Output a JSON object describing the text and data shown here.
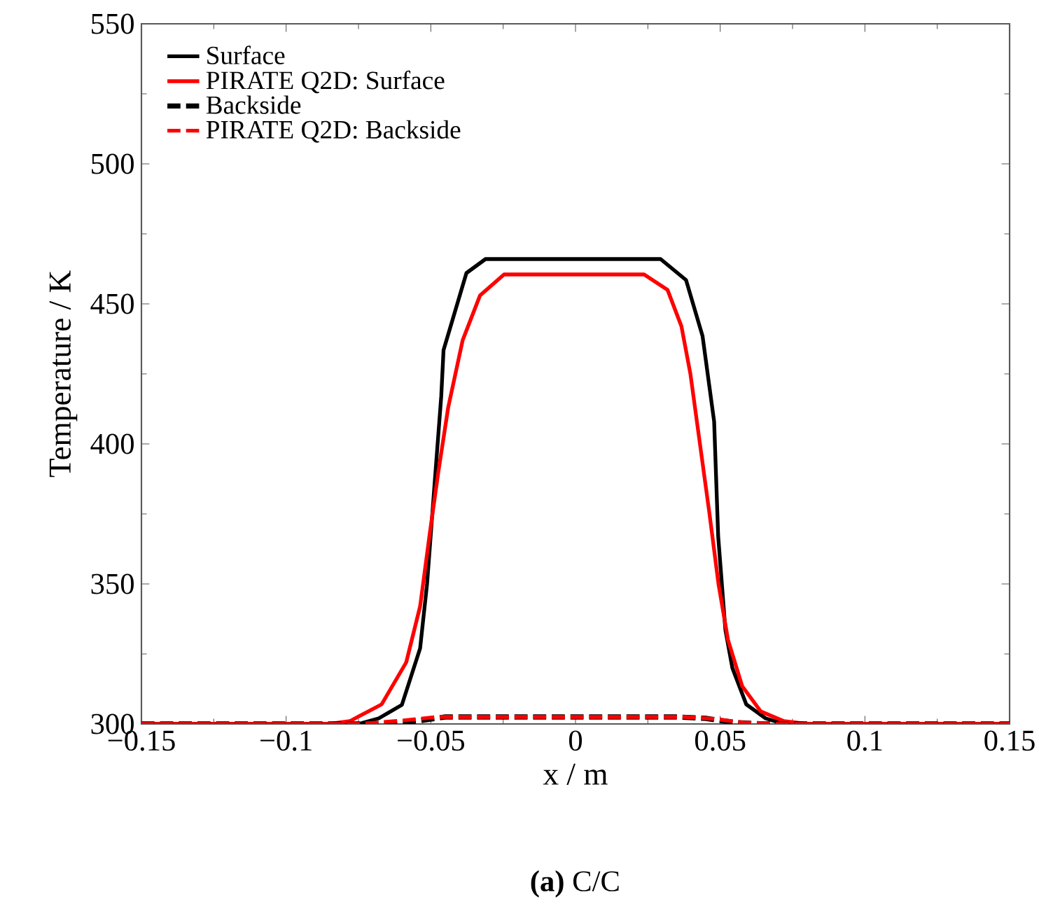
{
  "chart_data": {
    "type": "line",
    "xlabel": "x / m",
    "ylabel": "Temperature / K",
    "annotations": [
      "**(a)** C/C"
    ],
    "xlim": [
      -0.15,
      0.15
    ],
    "xticks": [
      {
        "value": -0.15,
        "label": "−0.15"
      },
      {
        "value": -0.1,
        "label": "−0.1"
      },
      {
        "value": -0.05,
        "label": "−0.05"
      },
      0,
      0.05,
      0.1,
      0.15
    ],
    "ylim": [
      300,
      550
    ],
    "yticks": [
      300,
      350,
      400,
      450,
      500,
      550
    ],
    "legend": "top left",
    "grid": false,
    "series": [
      {
        "name": "Surface",
        "color": "#000000",
        "line_style": "solid",
        "x": [
          -0.15,
          -0.075,
          -0.068,
          -0.06,
          -0.0537,
          -0.0513,
          -0.0489,
          -0.0464,
          -0.0456,
          -0.0377,
          -0.0311,
          0.0294,
          0.0382,
          0.0439,
          0.0479,
          0.0493,
          0.0518,
          0.0542,
          0.059,
          0.0657,
          0.072,
          0.15
        ],
        "values": [
          300,
          300,
          302,
          306.8,
          327,
          350,
          383,
          417,
          433.5,
          461,
          466,
          466,
          458.5,
          438.5,
          408,
          367,
          333.5,
          320,
          307,
          302,
          300,
          300
        ]
      },
      {
        "name": "PIRATE Q2D: Surface",
        "color": "#ff0000",
        "line_style": "solid",
        "x": [
          -0.15,
          -0.085,
          -0.078,
          -0.067,
          -0.0585,
          -0.0537,
          -0.0505,
          -0.0474,
          -0.044,
          -0.039,
          -0.033,
          -0.0247,
          0.0237,
          0.0318,
          0.0366,
          0.0397,
          0.043,
          0.0463,
          0.0494,
          0.0527,
          0.0576,
          0.064,
          0.072,
          0.08,
          0.15
        ],
        "values": [
          300,
          300,
          301,
          307,
          322,
          342,
          367,
          390,
          413,
          437,
          453,
          460.5,
          460.5,
          455,
          442,
          425,
          400,
          375,
          350,
          330,
          313.5,
          304.5,
          301,
          300,
          300
        ]
      },
      {
        "name": "Backside",
        "color": "#000000",
        "line_style": "dashed",
        "x": [
          -0.15,
          -0.07,
          -0.055,
          -0.045,
          0.035,
          0.045,
          0.055,
          0.065,
          0.15
        ],
        "values": [
          300,
          300,
          301,
          302.5,
          302.5,
          302,
          300.5,
          300,
          300
        ]
      },
      {
        "name": "PIRATE Q2D: Backside",
        "color": "#ff0000",
        "line_style": "dashed",
        "x": [
          -0.15,
          -0.075,
          -0.06,
          -0.048,
          0.038,
          0.048,
          0.058,
          0.07,
          0.15
        ],
        "values": [
          300,
          300,
          301.2,
          302.5,
          302.5,
          301.8,
          300.5,
          300,
          300
        ]
      }
    ]
  }
}
